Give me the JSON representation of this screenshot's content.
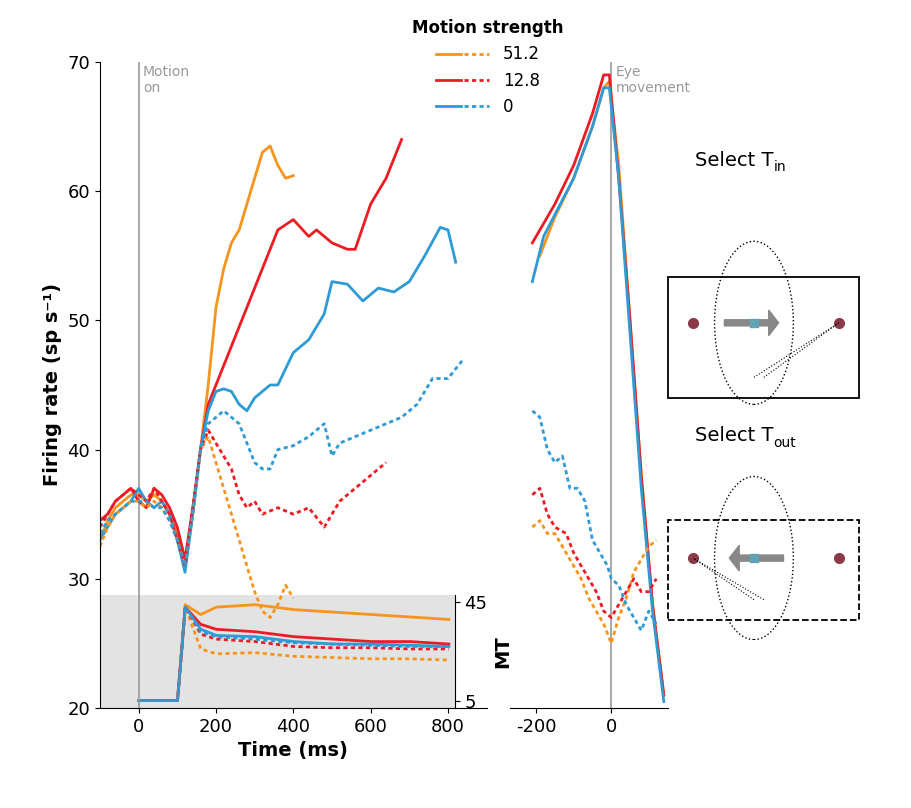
{
  "chart_data": [
    {
      "type": "line",
      "x_label": "Time (ms)",
      "y_label": "Firing rate (sp s⁻¹)",
      "xlim": [
        -100,
        900
      ],
      "xticks": [
        0,
        200,
        400,
        600,
        800
      ],
      "ylim": [
        20,
        70
      ],
      "yticks": [
        20,
        30,
        40,
        50,
        60,
        70
      ],
      "legend": "upper center",
      "legend_title": "Motion strength",
      "annotations": [
        {
          "text": "Motion\non",
          "x": 0
        }
      ],
      "series": [
        {
          "name": "51.2",
          "color": "#f7941d",
          "line_style": "solid",
          "x": [
            -100,
            -80,
            -60,
            -40,
            -20,
            0,
            20,
            40,
            60,
            80,
            100,
            120,
            140,
            160,
            180,
            200,
            220,
            240,
            260,
            280,
            300,
            320,
            340,
            360,
            380,
            400
          ],
          "values": [
            33,
            34.5,
            35.5,
            36,
            36.5,
            36.5,
            36,
            36.5,
            36,
            35,
            33.5,
            31.5,
            35,
            40,
            45,
            51,
            54,
            56,
            57,
            59,
            61,
            63,
            63.5,
            62,
            61,
            61.2
          ]
        },
        {
          "name": "12.8",
          "color": "#ed1c24",
          "line_style": "solid",
          "x": [
            -100,
            -80,
            -60,
            -40,
            -20,
            0,
            20,
            40,
            60,
            80,
            100,
            120,
            140,
            160,
            180,
            200,
            240,
            280,
            320,
            360,
            400,
            440,
            460,
            500,
            540,
            560,
            600,
            640,
            680
          ],
          "values": [
            34.5,
            35,
            36,
            36.5,
            37,
            36,
            35.5,
            37,
            36.5,
            35.5,
            34,
            31.5,
            35.5,
            40,
            43.5,
            45,
            48,
            51,
            54,
            57,
            57.8,
            56.5,
            57,
            56,
            55.5,
            55.5,
            59,
            61,
            64
          ]
        },
        {
          "name": "0",
          "color": "#2e9bd6",
          "line_style": "solid",
          "x": [
            -100,
            -80,
            -60,
            -40,
            -20,
            0,
            20,
            40,
            60,
            80,
            100,
            120,
            140,
            160,
            180,
            200,
            220,
            240,
            260,
            280,
            300,
            340,
            360,
            400,
            440,
            480,
            500,
            540,
            580,
            620,
            660,
            700,
            740,
            780,
            800,
            820
          ],
          "values": [
            33,
            34,
            35,
            35.5,
            36,
            37,
            36,
            35.5,
            36,
            35,
            33,
            30.5,
            35,
            40,
            43,
            44.5,
            44.7,
            44.5,
            43.5,
            43,
            44,
            45,
            45,
            47.5,
            48.5,
            50.5,
            53,
            52.8,
            51.5,
            52.5,
            52.2,
            53,
            55,
            57.2,
            57,
            54.5
          ]
        },
        {
          "name": "51.2",
          "color": "#f7941d",
          "line_style": "dotted",
          "x": [
            -100,
            -80,
            -60,
            -40,
            -20,
            0,
            20,
            40,
            60,
            80,
            100,
            120,
            140,
            160,
            180,
            200,
            220,
            240,
            260,
            280,
            300,
            320,
            340,
            360,
            380,
            400
          ],
          "values": [
            32.5,
            34,
            35,
            35.5,
            36,
            36,
            35.5,
            36,
            35.5,
            34.5,
            33,
            31,
            35,
            40,
            41,
            39,
            37,
            35,
            33,
            31,
            29,
            27.5,
            27,
            28,
            29.5,
            28.5
          ]
        },
        {
          "name": "12.8",
          "color": "#ed1c24",
          "line_style": "dotted",
          "x": [
            -100,
            -80,
            -60,
            -40,
            -20,
            0,
            20,
            40,
            60,
            80,
            100,
            120,
            140,
            160,
            180,
            200,
            220,
            240,
            260,
            280,
            300,
            320,
            360,
            400,
            440,
            480,
            520,
            560,
            600,
            640
          ],
          "values": [
            34,
            35,
            36,
            36.5,
            37,
            36.5,
            36,
            37,
            36,
            35,
            33,
            31,
            35.5,
            40,
            41.5,
            40.5,
            39.5,
            38.5,
            36.5,
            35.5,
            36,
            35,
            35.5,
            35,
            35.5,
            34,
            36,
            37,
            38,
            39
          ]
        },
        {
          "name": "0",
          "color": "#2e9bd6",
          "line_style": "dotted",
          "x": [
            -100,
            -80,
            -60,
            -40,
            -20,
            0,
            20,
            40,
            60,
            80,
            100,
            120,
            140,
            160,
            180,
            220,
            260,
            300,
            320,
            340,
            360,
            400,
            440,
            480,
            500,
            520,
            560,
            600,
            640,
            680,
            720,
            760,
            800,
            840
          ],
          "values": [
            33.5,
            34.5,
            35,
            35.5,
            36,
            36,
            36,
            35.5,
            35.5,
            34.5,
            33,
            31,
            35,
            40,
            42,
            43,
            42,
            39,
            38.5,
            38.5,
            40,
            40.3,
            41,
            42,
            39.5,
            40.5,
            41,
            41.5,
            42,
            42.5,
            43.5,
            45.5,
            45.5,
            47
          ]
        }
      ]
    },
    {
      "type": "line",
      "xlim": [
        -270,
        150
      ],
      "xticks": [
        -200,
        0
      ],
      "ylim": [
        20,
        70
      ],
      "tick_labels": "x",
      "annotations": [
        {
          "text": "Eye\nmovement",
          "x": 0
        }
      ],
      "series": [
        {
          "name": "51.2",
          "color": "#f7941d",
          "line_style": "solid",
          "x": [
            -190,
            -150,
            -100,
            -50,
            -20,
            -5,
            20,
            50,
            80,
            110,
            140
          ],
          "values": [
            55,
            58,
            61,
            65,
            68,
            68.5,
            62,
            50,
            38,
            28,
            21
          ]
        },
        {
          "name": "12.8",
          "color": "#ed1c24",
          "line_style": "solid",
          "x": [
            -210,
            -180,
            -150,
            -100,
            -50,
            -20,
            -5,
            20,
            50,
            80,
            110,
            140
          ],
          "values": [
            56,
            57.5,
            59,
            62,
            66,
            69,
            69,
            61,
            50,
            38,
            28,
            21
          ]
        },
        {
          "name": "0",
          "color": "#2e9bd6",
          "line_style": "solid",
          "x": [
            -210,
            -180,
            -100,
            -50,
            -20,
            -5,
            20,
            50,
            80,
            110,
            140
          ],
          "values": [
            53,
            56.5,
            61,
            65,
            68,
            68,
            61,
            49,
            37,
            27.5,
            20.5
          ]
        },
        {
          "name": "51.2",
          "color": "#f7941d",
          "line_style": "dotted",
          "x": [
            -210,
            -190,
            -170,
            -150,
            -120,
            -100,
            -80,
            -60,
            -40,
            -20,
            0,
            20,
            40,
            60,
            80,
            100,
            120
          ],
          "values": [
            34,
            34.5,
            33.5,
            33.5,
            32,
            31,
            30,
            28.5,
            27.5,
            26.5,
            25,
            27,
            28.5,
            30.5,
            31.5,
            32.5,
            33
          ]
        },
        {
          "name": "12.8",
          "color": "#ed1c24",
          "line_style": "dotted",
          "x": [
            -210,
            -190,
            -170,
            -150,
            -120,
            -100,
            -80,
            -60,
            -40,
            -20,
            0,
            20,
            40,
            60,
            80,
            100,
            120
          ],
          "values": [
            36.5,
            37,
            35,
            34,
            33.5,
            32,
            31,
            30,
            29,
            27.5,
            27,
            28,
            29,
            30,
            29,
            29,
            30
          ]
        },
        {
          "name": "0",
          "color": "#2e9bd6",
          "line_style": "dotted",
          "x": [
            -210,
            -190,
            -170,
            -150,
            -130,
            -110,
            -90,
            -70,
            -50,
            -30,
            -10,
            0,
            20,
            40,
            60,
            80,
            100,
            120
          ],
          "values": [
            43,
            42.5,
            40,
            39,
            39.5,
            37,
            37,
            36,
            33,
            32,
            31,
            30,
            29.5,
            28,
            27,
            26,
            27.5,
            26.5
          ]
        }
      ]
    },
    {
      "type": "line",
      "y_label": "MT",
      "xlim": [
        -100,
        815
      ],
      "ylim": [
        2,
        48
      ],
      "yticks": [
        5,
        45
      ],
      "tick_labels": "y",
      "series": [
        {
          "name": "51.2",
          "color": "#f7941d",
          "line_style": "solid",
          "x": [
            0,
            100,
            120,
            160,
            200,
            300,
            400,
            500,
            600,
            700,
            800
          ],
          "values": [
            5,
            5,
            44,
            40,
            43,
            44,
            42,
            41,
            40,
            39,
            38
          ]
        },
        {
          "name": "12.8",
          "color": "#ed1c24",
          "line_style": "solid",
          "x": [
            0,
            100,
            120,
            160,
            200,
            300,
            400,
            500,
            600,
            700,
            800
          ],
          "values": [
            5,
            5,
            43,
            36,
            34,
            33,
            31,
            30,
            29,
            29,
            28
          ]
        },
        {
          "name": "0",
          "color": "#2e9bd6",
          "line_style": "solid",
          "x": [
            0,
            100,
            120,
            160,
            200,
            300,
            400,
            500,
            600,
            700,
            800
          ],
          "values": [
            5,
            5,
            43,
            34,
            31.5,
            31,
            29,
            28,
            28,
            27.5,
            27
          ]
        },
        {
          "name": "51.2",
          "color": "#f7941d",
          "line_style": "dotted",
          "x": [
            0,
            100,
            120,
            160,
            200,
            300,
            400,
            500,
            600,
            700,
            800
          ],
          "values": [
            5,
            5,
            43,
            26,
            24,
            24.5,
            23,
            22.5,
            22,
            22,
            21.5
          ]
        },
        {
          "name": "12.8",
          "color": "#ed1c24",
          "line_style": "dotted",
          "x": [
            0,
            100,
            120,
            160,
            200,
            300,
            400,
            500,
            600,
            700,
            800
          ],
          "values": [
            5,
            5,
            43,
            32,
            30,
            29,
            27,
            26.5,
            26.5,
            26,
            26
          ]
        },
        {
          "name": "0",
          "color": "#2e9bd6",
          "line_style": "dotted",
          "x": [
            0,
            100,
            120,
            160,
            200,
            300,
            400,
            500,
            600,
            700,
            800
          ],
          "values": [
            5,
            5,
            43,
            33,
            31,
            30,
            28.5,
            28,
            27.5,
            27,
            27
          ]
        }
      ]
    }
  ],
  "schematics": [
    {
      "text": "Select T",
      "subscript": "in",
      "line_style": "solid"
    },
    {
      "text": "Select T",
      "subscript": "out",
      "line_style": "dashed"
    }
  ]
}
